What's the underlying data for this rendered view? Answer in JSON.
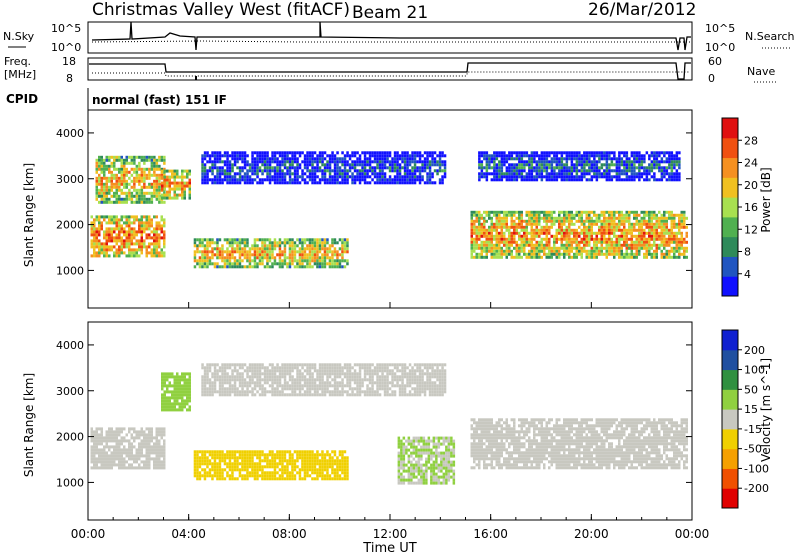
{
  "header": {
    "title": "Christmas Valley West (fitACF)",
    "beam": "Beam 21",
    "date": "26/Mar/2012"
  },
  "status_panels": {
    "nsky_label": "N.Sky",
    "nsearch_label": "N.Search",
    "freq_label_1": "Freq.",
    "freq_label_2": "[MHz]",
    "nave_label": "Nave",
    "cpid_label": "CPID",
    "cpid_value": "normal (fast) 151 IF",
    "nsky_ticks": [
      "10^5",
      "10^0"
    ],
    "nsearch_ticks": [
      "10^5",
      "10^0"
    ],
    "freq_ticks": [
      "18",
      "8"
    ],
    "nave_ticks": [
      "60",
      "0"
    ]
  },
  "chart_data": [
    {
      "type": "heatmap",
      "panel": "power",
      "ylabel": "Slant Range [km]",
      "ylim": [
        180,
        4500
      ],
      "yticks": [
        "4000",
        "3000",
        "2000",
        "1000"
      ],
      "xlim_hours": [
        0,
        24
      ],
      "colorbar_label": "Power [dB]",
      "colorbar_ticks": [
        "28",
        "24",
        "20",
        "16",
        "12",
        "8",
        "4"
      ],
      "colorbar_range": [
        0,
        32
      ],
      "colors": [
        "#1010ff",
        "#2055c0",
        "#2e8a5a",
        "#50b050",
        "#a8e050",
        "#f0c020",
        "#f59020",
        "#f05010",
        "#e01010"
      ],
      "bands": [
        {
          "t0": 0.1,
          "t1": 3.0,
          "r0": 1300,
          "r1": 2200,
          "level": 26
        },
        {
          "t0": 0.3,
          "t1": 3.0,
          "r0": 2500,
          "r1": 3500,
          "level": 22
        },
        {
          "t0": 2.9,
          "t1": 4.0,
          "r0": 2600,
          "r1": 3200,
          "level": 24
        },
        {
          "t0": 4.2,
          "t1": 10.3,
          "r0": 1100,
          "r1": 1700,
          "level": 22
        },
        {
          "t0": 4.5,
          "t1": 14.2,
          "r0": 2900,
          "r1": 3600,
          "level": 6
        },
        {
          "t0": 15.2,
          "t1": 23.8,
          "r0": 1300,
          "r1": 2300,
          "level": 24
        },
        {
          "t0": 15.5,
          "t1": 23.5,
          "r0": 3000,
          "r1": 3600,
          "level": 8
        }
      ]
    },
    {
      "type": "heatmap",
      "panel": "velocity",
      "ylabel": "Slant Range [km]",
      "ylim": [
        180,
        4500
      ],
      "yticks": [
        "4000",
        "3000",
        "2000",
        "1000"
      ],
      "xlabel": "Time UT",
      "xticks": [
        "00:00",
        "04:00",
        "08:00",
        "12:00",
        "16:00",
        "20:00",
        "00:00"
      ],
      "xlim_hours": [
        0,
        24
      ],
      "colorbar_label": "Velocity [m s^-1]",
      "colorbar_ticks": [
        "200",
        "100",
        "50",
        "15",
        "-15",
        "-50",
        "-100",
        "-200"
      ],
      "colorbar_range": [
        -250,
        250
      ],
      "colors": [
        "#e00000",
        "#f05000",
        "#f5a000",
        "#f0d000",
        "#c8c8c0",
        "#90d040",
        "#309040",
        "#2050a0",
        "#1020d0"
      ],
      "bands": [
        {
          "t0": 0.1,
          "t1": 3.0,
          "r0": 1300,
          "r1": 2200,
          "level": 0
        },
        {
          "t0": 2.9,
          "t1": 4.0,
          "r0": 2600,
          "r1": 3400,
          "level": 60
        },
        {
          "t0": 4.2,
          "t1": 10.3,
          "r0": 1100,
          "r1": 1700,
          "level": -60
        },
        {
          "t0": 4.5,
          "t1": 14.2,
          "r0": 2900,
          "r1": 3600,
          "level": 0
        },
        {
          "t0": 12.3,
          "t1": 14.5,
          "r0": 1000,
          "r1": 2000,
          "level": 30
        },
        {
          "t0": 15.2,
          "t1": 23.8,
          "r0": 1300,
          "r1": 2400,
          "level": 0
        }
      ]
    }
  ]
}
